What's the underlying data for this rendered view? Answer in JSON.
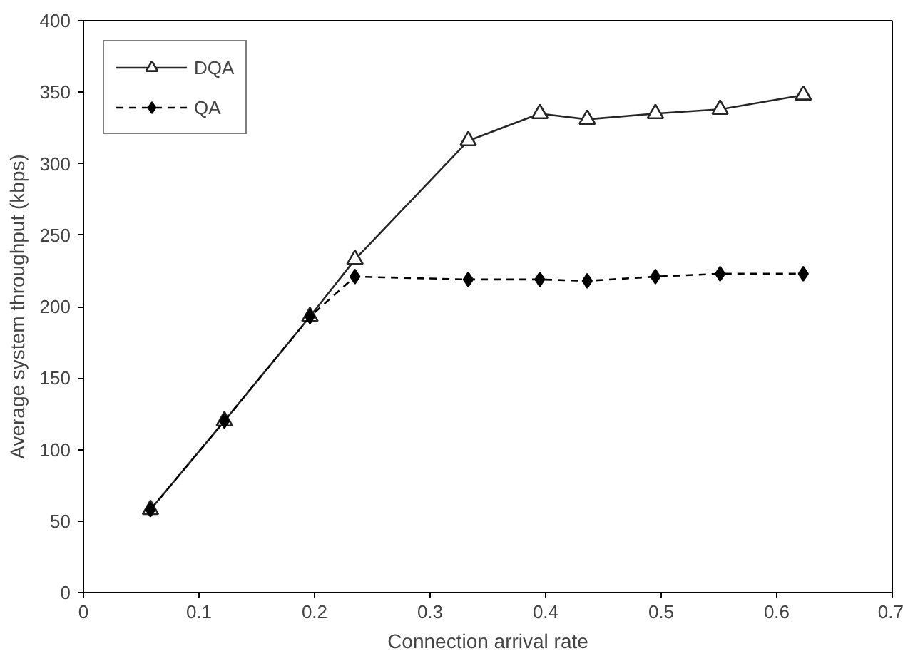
{
  "chart_data": {
    "type": "line",
    "xlabel": "Connection arrival rate",
    "ylabel": "Average system throughput (kbps)",
    "x": [
      0.058,
      0.122,
      0.196,
      0.235,
      0.333,
      0.395,
      0.436,
      0.495,
      0.551,
      0.623
    ],
    "series": [
      {
        "name": "DQA",
        "color": "#262626",
        "marker": "triangle",
        "line_style": "solid",
        "values": [
          58,
          120,
          193,
          233,
          316,
          335,
          331,
          335,
          338,
          348
        ]
      },
      {
        "name": "QA",
        "color": "#000000",
        "marker": "diamond",
        "line_style": "dashed",
        "values": [
          58,
          120,
          193,
          221,
          219,
          219,
          218,
          221,
          223,
          223
        ]
      }
    ],
    "xlim": [
      0,
      0.7
    ],
    "xticks": [
      0,
      0.1,
      0.2,
      0.3,
      0.4,
      0.5,
      0.6,
      0.7
    ],
    "ylim": [
      0,
      400
    ],
    "yticks": [
      0,
      50,
      100,
      150,
      200,
      250,
      300,
      350,
      400
    ],
    "grid": false,
    "legend": "top left"
  }
}
